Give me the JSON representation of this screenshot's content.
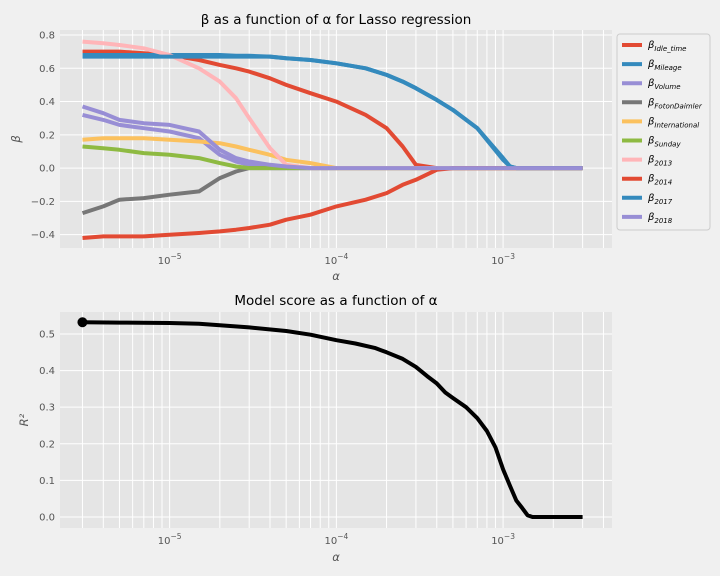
{
  "chart_data": [
    {
      "type": "line",
      "title": "β as a function of α for Lasso regression",
      "xlabel": "α",
      "ylabel": "β",
      "xscale": "log",
      "xlim": [
        2.2e-06,
        0.0045
      ],
      "ylim": [
        -0.48,
        0.83
      ],
      "xticks": [
        {
          "value": 1e-05,
          "base": "10",
          "exp": "−5"
        },
        {
          "value": 0.0001,
          "base": "10",
          "exp": "−4"
        },
        {
          "value": 0.001,
          "base": "10",
          "exp": "−3"
        }
      ],
      "yticks": [
        {
          "value": -0.4,
          "label": "−0.4"
        },
        {
          "value": -0.2,
          "label": "−0.2"
        },
        {
          "value": 0.0,
          "label": "0.0"
        },
        {
          "value": 0.2,
          "label": "0.2"
        },
        {
          "value": 0.4,
          "label": "0.4"
        },
        {
          "value": 0.6,
          "label": "0.6"
        },
        {
          "value": 0.8,
          "label": "0.8"
        }
      ],
      "grid": true,
      "legend_position": "outside-right",
      "x": [
        3e-06,
        4e-06,
        5e-06,
        7e-06,
        1e-05,
        1.5e-05,
        2e-05,
        2.5e-05,
        3e-05,
        4e-05,
        5e-05,
        7e-05,
        0.0001,
        0.00015,
        0.0002,
        0.00025,
        0.0003,
        0.0004,
        0.0005,
        0.0007,
        0.001,
        0.0011,
        0.0012,
        0.0015,
        0.002,
        0.003
      ],
      "series": [
        {
          "base": "β",
          "sub": "Idle_time",
          "color": "#e24a33",
          "values": [
            0.7,
            0.7,
            0.7,
            0.69,
            0.68,
            0.65,
            0.62,
            0.6,
            0.58,
            0.54,
            0.5,
            0.45,
            0.4,
            0.32,
            0.24,
            0.13,
            0.02,
            0,
            0,
            0,
            0,
            0,
            0,
            0,
            0,
            0
          ]
        },
        {
          "base": "β",
          "sub": "Mileage",
          "color": "#348abd",
          "values": [
            0.68,
            0.68,
            0.68,
            0.68,
            0.68,
            0.68,
            0.68,
            0.675,
            0.675,
            0.67,
            0.66,
            0.65,
            0.63,
            0.6,
            0.56,
            0.52,
            0.48,
            0.41,
            0.35,
            0.24,
            0.06,
            0.01,
            0,
            0,
            0,
            0
          ]
        },
        {
          "base": "β",
          "sub": "Volume",
          "color": "#988ed5",
          "values": [
            0.32,
            0.29,
            0.26,
            0.24,
            0.22,
            0.18,
            0.08,
            0.04,
            0.02,
            0,
            0,
            0,
            0,
            0,
            0,
            0,
            0,
            0,
            0,
            0,
            0,
            0,
            0,
            0,
            0,
            0
          ]
        },
        {
          "base": "β",
          "sub": "FotonDaimler",
          "color": "#777777",
          "values": [
            -0.27,
            -0.23,
            -0.19,
            -0.18,
            -0.16,
            -0.14,
            -0.06,
            -0.02,
            0,
            0,
            0,
            0,
            0,
            0,
            0,
            0,
            0,
            0,
            0,
            0,
            0,
            0,
            0,
            0,
            0,
            0
          ]
        },
        {
          "base": "β",
          "sub": "International",
          "color": "#fbc15e",
          "values": [
            0.17,
            0.18,
            0.18,
            0.18,
            0.17,
            0.16,
            0.15,
            0.13,
            0.11,
            0.08,
            0.05,
            0.03,
            0,
            0,
            0,
            0,
            0,
            0,
            0,
            0,
            0,
            0,
            0,
            0,
            0,
            0
          ]
        },
        {
          "base": "β",
          "sub": "Sunday",
          "color": "#8eba42",
          "values": [
            0.13,
            0.12,
            0.11,
            0.09,
            0.08,
            0.06,
            0.03,
            0.01,
            0,
            0,
            0,
            0,
            0,
            0,
            0,
            0,
            0,
            0,
            0,
            0,
            0,
            0,
            0,
            0,
            0,
            0
          ]
        },
        {
          "base": "β",
          "sub": "2013",
          "color": "#ffb5b8",
          "values": [
            0.76,
            0.75,
            0.74,
            0.72,
            0.68,
            0.6,
            0.52,
            0.42,
            0.3,
            0.12,
            0.02,
            0,
            0,
            0,
            0,
            0,
            0,
            0,
            0,
            0,
            0,
            0,
            0,
            0,
            0,
            0
          ]
        },
        {
          "base": "β",
          "sub": "2014",
          "color": "#e24a33",
          "values": [
            -0.42,
            -0.41,
            -0.41,
            -0.41,
            -0.4,
            -0.39,
            -0.38,
            -0.37,
            -0.36,
            -0.34,
            -0.31,
            -0.28,
            -0.23,
            -0.19,
            -0.15,
            -0.1,
            -0.07,
            -0.01,
            0,
            0,
            0,
            0,
            0,
            0,
            0,
            0
          ]
        },
        {
          "base": "β",
          "sub": "2017",
          "color": "#348abd",
          "values": [
            0.67,
            0.67,
            0.67,
            0.67,
            0.67,
            0.67,
            0.67,
            0.67,
            0.67,
            0.67,
            0.66,
            0.65,
            0.63,
            0.6,
            0.56,
            0.52,
            0.48,
            0.41,
            0.35,
            0.24,
            0.05,
            0.01,
            0,
            0,
            0,
            0
          ]
        },
        {
          "base": "β",
          "sub": "2018",
          "color": "#988ed5",
          "values": [
            0.37,
            0.33,
            0.29,
            0.27,
            0.26,
            0.22,
            0.11,
            0.06,
            0.04,
            0.02,
            0.01,
            0,
            0,
            0,
            0,
            0,
            0,
            0,
            0,
            0,
            0,
            0,
            0,
            0,
            0,
            0
          ]
        }
      ]
    },
    {
      "type": "line",
      "title": "Model score as a function of α",
      "xlabel": "α",
      "ylabel": "R²",
      "xscale": "log",
      "xlim": [
        2.2e-06,
        0.0045
      ],
      "ylim": [
        -0.03,
        0.56
      ],
      "xticks": [
        {
          "value": 1e-05,
          "base": "10",
          "exp": "−5"
        },
        {
          "value": 0.0001,
          "base": "10",
          "exp": "−4"
        },
        {
          "value": 0.001,
          "base": "10",
          "exp": "−3"
        }
      ],
      "yticks": [
        {
          "value": 0.0,
          "label": "0.0"
        },
        {
          "value": 0.1,
          "label": "0.1"
        },
        {
          "value": 0.2,
          "label": "0.2"
        },
        {
          "value": 0.3,
          "label": "0.3"
        },
        {
          "value": 0.4,
          "label": "0.4"
        },
        {
          "value": 0.5,
          "label": "0.5"
        }
      ],
      "grid": true,
      "marker": {
        "x": 3e-06,
        "y": 0.532
      },
      "series": [
        {
          "color": "#000000",
          "x": [
            3e-06,
            5e-06,
            1e-05,
            1.5e-05,
            2e-05,
            3e-05,
            5e-05,
            7e-05,
            0.0001,
            0.00013,
            0.00017,
            0.0002,
            0.00025,
            0.0003,
            0.00035,
            0.0004,
            0.00045,
            0.0005,
            0.0006,
            0.0007,
            0.0008,
            0.0009,
            0.001,
            0.0011,
            0.0012,
            0.0013,
            0.0014,
            0.0015,
            0.002,
            0.003
          ],
          "values": [
            0.532,
            0.531,
            0.53,
            0.528,
            0.524,
            0.518,
            0.508,
            0.498,
            0.483,
            0.474,
            0.462,
            0.45,
            0.432,
            0.41,
            0.385,
            0.365,
            0.34,
            0.325,
            0.3,
            0.27,
            0.235,
            0.19,
            0.13,
            0.085,
            0.045,
            0.025,
            0.005,
            0,
            0,
            0
          ]
        }
      ]
    }
  ]
}
